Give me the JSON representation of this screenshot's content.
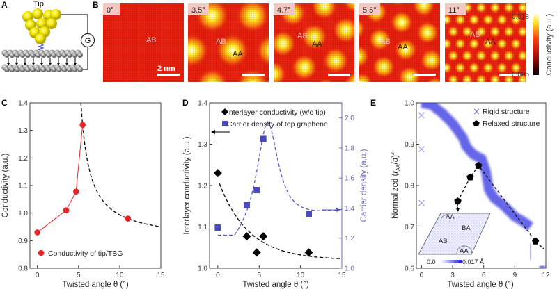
{
  "panel_a": {
    "label": "A",
    "tip_label": "Tip",
    "meter_label": "G"
  },
  "panel_b": {
    "label": "B",
    "maps": [
      {
        "angle": "0°",
        "site_labels": [
          "AB"
        ],
        "scale_bar": "2 nm"
      },
      {
        "angle": "3.5°",
        "site_labels": [
          "AB",
          "AA"
        ]
      },
      {
        "angle": "4.7°",
        "site_labels": [
          "AB",
          "AA"
        ]
      },
      {
        "angle": "5.5°",
        "site_labels": [
          "AB",
          "AA"
        ]
      },
      {
        "angle": "11°",
        "site_labels": [
          "AB",
          "AA"
        ]
      }
    ],
    "colorbar": {
      "max": "0.018",
      "min": "0.005",
      "title": "Conductivity (a.u.)",
      "colors": [
        "#000000",
        "#e8200e",
        "#ffe21a",
        "#ffffe0"
      ]
    }
  },
  "chart_data": [
    {
      "panel_label": "C",
      "type": "line",
      "xlabel": "Twisted angle θ (°)",
      "ylabel": "Conductivity (a.u.)",
      "xlim": [
        -0.9,
        15
      ],
      "ylim": [
        0.8,
        1.4
      ],
      "xticks": [
        "0",
        "5",
        "10",
        "15"
      ],
      "yticks": [
        "0.8",
        "0.9",
        "1.0",
        "1.1",
        "1.2",
        "1.3",
        "1.4"
      ],
      "series": [
        {
          "name": "Conductivity of tip/TBG",
          "x": [
            0,
            3.5,
            4.7,
            5.5,
            11
          ],
          "y": [
            0.93,
            1.01,
            1.078,
            1.32,
            0.98
          ],
          "color": "#e8262a",
          "marker": "circle"
        }
      ],
      "fit_curve": "dashed black, decaying for θ > 5.3",
      "legend": "bottom-left"
    },
    {
      "panel_label": "D",
      "type": "scatter",
      "xlabel": "Twisted angle θ (°)",
      "ylabel": "Interlayer conductivity (a.u.)",
      "y2label": "Carrier density (a.u.)",
      "xlim": [
        -1,
        15
      ],
      "ylim": [
        1.0,
        1.4
      ],
      "y2lim": [
        1.0,
        2.1
      ],
      "xticks": [
        "0",
        "5",
        "10",
        "15"
      ],
      "yticks": [
        "1.0",
        "1.1",
        "1.2",
        "1.3",
        "1.4"
      ],
      "y2ticks": [
        "1.0",
        "1.2",
        "1.4",
        "1.6",
        "1.8",
        "2.0"
      ],
      "series": [
        {
          "name": "Interlayer conductivity (w/o tip)",
          "axis": "left",
          "x": [
            0,
            3.5,
            4.7,
            5.5,
            11
          ],
          "y": [
            1.23,
            1.077,
            1.038,
            1.077,
            1.038
          ],
          "color": "#000000",
          "marker": "diamond"
        },
        {
          "name": "Carrier density of top graphene",
          "axis": "right",
          "x": [
            0,
            3.5,
            4.7,
            5.5,
            11
          ],
          "y": [
            1.27,
            1.42,
            1.52,
            1.86,
            1.36
          ],
          "color": "#4a4ab8",
          "marker": "square"
        }
      ],
      "legend": "top"
    },
    {
      "panel_label": "E",
      "type": "scatter",
      "xlabel": "Twisted angle θ (°)",
      "ylabel": {
        "prefix": "Normalized (",
        "r": "r",
        "sub": "AA",
        "mid": "/a)",
        "sup": "2"
      },
      "xlim": [
        -0.5,
        12
      ],
      "ylim": [
        0.6,
        1.0
      ],
      "xticks": [
        "0",
        "3",
        "6",
        "9",
        "12"
      ],
      "yticks": [
        "0.6",
        "0.7",
        "0.8",
        "0.9",
        "1.0"
      ],
      "series": [
        {
          "name": "Rigid structure",
          "marker": "x",
          "color": "#5050e0",
          "x": [
            0,
            0,
            0,
            0,
            1,
            2,
            3,
            4,
            4.3,
            5,
            5.8,
            6.2,
            6.5,
            7,
            8,
            9,
            10,
            10.5,
            10.5,
            11.5
          ],
          "y": [
            0.97,
            0.888,
            0.758,
            1.0,
            0.995,
            0.975,
            0.95,
            0.915,
            0.895,
            0.875,
            0.865,
            0.835,
            0.79,
            0.77,
            0.75,
            0.725,
            0.71,
            0.7,
            0.63,
            0.6
          ]
        },
        {
          "name": "Relaxed structure",
          "marker": "pentagon",
          "color": "#000000",
          "x": [
            3.5,
            4.7,
            5.5,
            11
          ],
          "y": [
            0.762,
            0.82,
            0.848,
            0.665
          ]
        }
      ],
      "inset": {
        "regions": [
          "AA",
          "BA",
          "AB",
          "AA"
        ],
        "colorbar_min": "0.0",
        "colorbar_max": "0.017 Å"
      },
      "legend": "top-right"
    }
  ]
}
